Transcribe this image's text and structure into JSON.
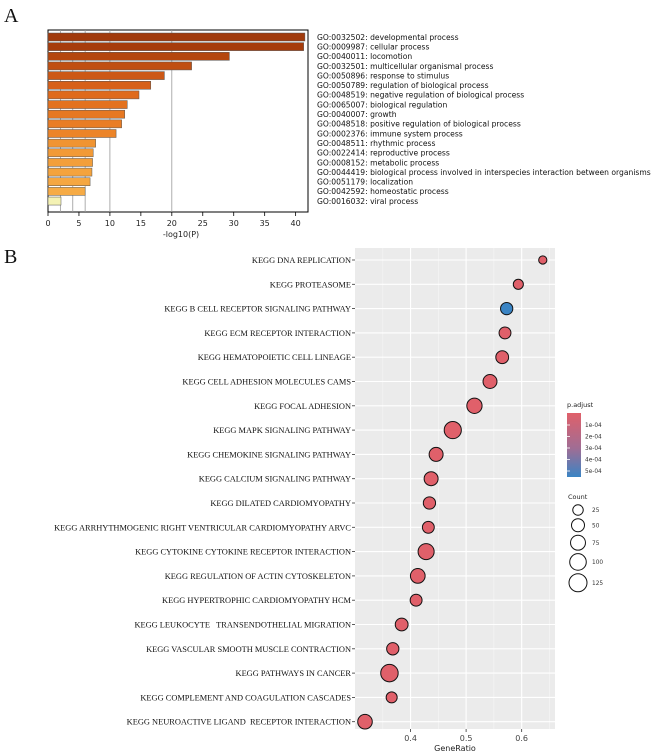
{
  "panel_labels": {
    "a": "A",
    "b": "B"
  },
  "chart_data": [
    {
      "type": "bar",
      "orientation": "horizontal",
      "xlabel": "-log10(P)",
      "xlim": [
        0,
        42
      ],
      "xticks": [
        "0",
        "5",
        "10",
        "15",
        "20",
        "25",
        "30",
        "35",
        "40"
      ],
      "categories": [
        "GO:0032502: developmental process",
        "GO:0009987: cellular process",
        "GO:0040011: locomotion",
        "GO:0032501: multicellular organismal process",
        "GO:0050896: response to stimulus",
        "GO:0050789: regulation of biological process",
        "GO:0048519: negative regulation of biological process",
        "GO:0065007: biological regulation",
        "GO:0040007: growth",
        "GO:0048518: positive regulation of biological process",
        "GO:0002376: immune system process",
        "GO:0048511: rhythmic process",
        "GO:0022414: reproductive process",
        "GO:0008152: metabolic process",
        "GO:0044419: biological process involved in interspecies interaction between organisms",
        "GO:0051179: localization",
        "GO:0042592: homeostatic process",
        "GO:0016032: viral process"
      ],
      "values": [
        41.5,
        41.3,
        29.3,
        23.2,
        18.8,
        16.6,
        14.7,
        12.8,
        12.4,
        11.9,
        11.0,
        7.7,
        7.3,
        7.2,
        7.1,
        6.8,
        6.0,
        2.1
      ],
      "colors": [
        "#a13a0c",
        "#a63c0c",
        "#b4460e",
        "#c04f12",
        "#cc5816",
        "#d76019",
        "#df6a1c",
        "#e3721f",
        "#e67822",
        "#e97d25",
        "#ec8428",
        "#f09432",
        "#f29a36",
        "#f39f3a",
        "#f4a33d",
        "#f5a741",
        "#f6ab45",
        "#f4f2b4"
      ],
      "reference_lines": [
        2,
        4,
        6,
        10,
        20
      ]
    },
    {
      "type": "scatter",
      "title": "",
      "xlabel": "GeneRatio",
      "xlim": [
        0.3,
        0.66
      ],
      "xticks": [
        0.4,
        0.5,
        0.6
      ],
      "xtick_labels": [
        "0.4",
        "0.5",
        "0.6"
      ],
      "categories": [
        "KEGG DNA REPLICATION",
        "KEGG PROTEASOME",
        "KEGG B CELL RECEPTOR SIGNALING PATHWAY",
        "KEGG ECM RECEPTOR INTERACTION",
        "KEGG HEMATOPOIETIC CELL LINEAGE",
        "KEGG CELL ADHESION MOLECULES CAMS",
        "KEGG FOCAL ADHESION",
        "KEGG MAPK SIGNALING PATHWAY",
        "KEGG CHEMOKINE SIGNALING PATHWAY",
        "KEGG CALCIUM SIGNALING PATHWAY",
        "KEGG DILATED CARDIOMYOPATHY",
        "KEGG ARRHYTHMOGENIC RIGHT VENTRICULAR CARDIOMYOPATHY ARVC",
        "KEGG CYTOKINE CYTOKINE RECEPTOR INTERACTION",
        "KEGG REGULATION OF ACTIN CYTOSKELETON",
        "KEGG HYPERTROPHIC CARDIOMYOPATHY HCM",
        "KEGG LEUKOCYTE   TRANSENDOTHELIAL MIGRATION",
        "KEGG VASCULAR SMOOTH MUSCLE CONTRACTION",
        "KEGG PATHWAYS IN CANCER",
        "KEGG COMPLEMENT AND COAGULATION CASCADES",
        "KEGG NEUROACTIVE LIGAND  RECEPTOR INTERACTION"
      ],
      "gene_ratio": [
        0.638,
        0.594,
        0.573,
        0.57,
        0.565,
        0.543,
        0.515,
        0.476,
        0.446,
        0.437,
        0.434,
        0.432,
        0.428,
        0.413,
        0.41,
        0.384,
        0.368,
        0.362,
        0.366,
        0.318
      ],
      "count": [
        10,
        22,
        42,
        38,
        48,
        62,
        80,
        110,
        62,
        62,
        42,
        38,
        92,
        72,
        38,
        48,
        42,
        115,
        30,
        70
      ],
      "p_adjust": [
        1e-05,
        1e-05,
        0.00055,
        1e-05,
        1e-05,
        1e-05,
        1e-05,
        1e-05,
        1e-05,
        1e-05,
        1e-05,
        1e-05,
        1e-05,
        1e-05,
        1e-05,
        1e-05,
        1e-05,
        1e-05,
        1e-05,
        1e-05
      ],
      "color_legend": {
        "title": "p.adjust",
        "labels": [
          "1e-04",
          "2e-04",
          "3e-04",
          "4e-04",
          "5e-04"
        ],
        "low_color": "#e0606a",
        "high_color": "#3a84c4"
      },
      "size_legend": {
        "title": "Count",
        "values": [
          25,
          50,
          75,
          100,
          125
        ],
        "labels": [
          "25",
          "50",
          "75",
          "100",
          "125"
        ]
      },
      "legend_position": "right",
      "grid": true
    }
  ]
}
